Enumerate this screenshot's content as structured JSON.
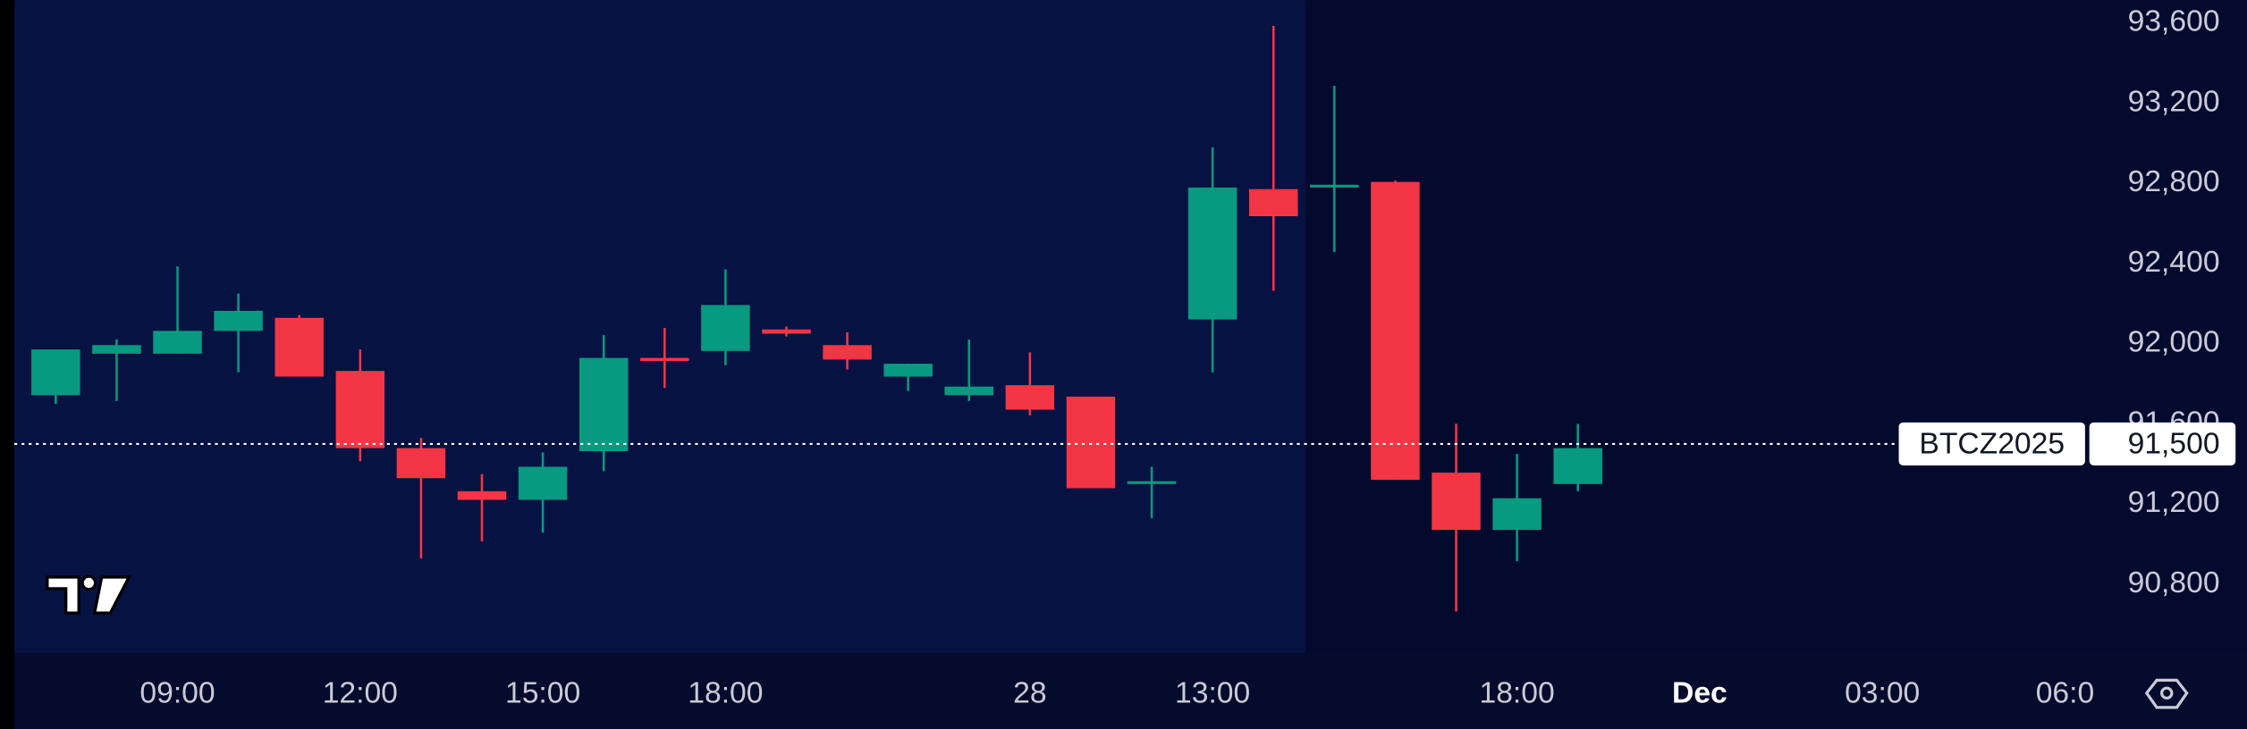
{
  "chart_data": {
    "type": "candlestick",
    "x": [
      0,
      1,
      2,
      3,
      4,
      5,
      6,
      7,
      8,
      9,
      10,
      11,
      12,
      13,
      14,
      15,
      16,
      17,
      18,
      19,
      20,
      21,
      22,
      23,
      24,
      25
    ],
    "series": [
      {
        "name": "BTCZ2025",
        "open": [
          91743,
          91950,
          91950,
          92064,
          92129,
          91864,
          91479,
          91264,
          91221,
          91464,
          91929,
          91964,
          92071,
          91993,
          91836,
          91743,
          91793,
          91736,
          91300,
          92121,
          92771,
          92779,
          92807,
          91357,
          91071,
          91300
        ],
        "high": [
          91971,
          92021,
          92386,
          92250,
          92143,
          91971,
          91529,
          91350,
          91457,
          92043,
          92079,
          92371,
          92086,
          92057,
          91900,
          92021,
          91957,
          91736,
          91386,
          92979,
          93586,
          93286,
          92814,
          91600,
          91450,
          91600
        ],
        "low": [
          91700,
          91714,
          91950,
          91857,
          91836,
          91414,
          90929,
          91014,
          91057,
          91364,
          91779,
          91893,
          92036,
          91871,
          91764,
          91714,
          91643,
          91279,
          91129,
          91857,
          92264,
          92457,
          91321,
          90664,
          90914,
          91264
        ],
        "close": [
          91971,
          91993,
          92064,
          92164,
          91836,
          91479,
          91329,
          91221,
          91386,
          91929,
          91914,
          92193,
          92050,
          91921,
          91900,
          91786,
          91671,
          91279,
          91314,
          92779,
          92636,
          92793,
          91321,
          91071,
          91229,
          91479
        ]
      }
    ],
    "up_color": "#089981",
    "down_color": "#f23645",
    "xlim": [
      -0.68,
      33.4
    ],
    "xticks": [
      {
        "value": 2,
        "label": "09:00"
      },
      {
        "value": 5,
        "label": "12:00"
      },
      {
        "value": 8,
        "label": "15:00"
      },
      {
        "value": 11,
        "label": "18:00"
      },
      {
        "value": 16,
        "label": "28"
      },
      {
        "value": 19,
        "label": "13:00"
      },
      {
        "value": 24,
        "label": "18:00"
      },
      {
        "value": 27,
        "label": "Dec",
        "bold": true
      },
      {
        "value": 30,
        "label": "03:00"
      },
      {
        "value": 33,
        "label": "06:0"
      }
    ],
    "ylim": [
      90457,
      93714
    ],
    "yticks": [
      {
        "value": 90800,
        "label": "90,800"
      },
      {
        "value": 91200,
        "label": "91,200"
      },
      {
        "value": 91600,
        "label": "91,600"
      },
      {
        "value": 92000,
        "label": "92,000"
      },
      {
        "value": 92400,
        "label": "92,400"
      },
      {
        "value": 92800,
        "label": "92,800"
      },
      {
        "value": 93200,
        "label": "93,200"
      },
      {
        "value": 93600,
        "label": "93,600"
      }
    ],
    "price_line": {
      "value": 91500,
      "label": "91,500"
    }
  }
}
